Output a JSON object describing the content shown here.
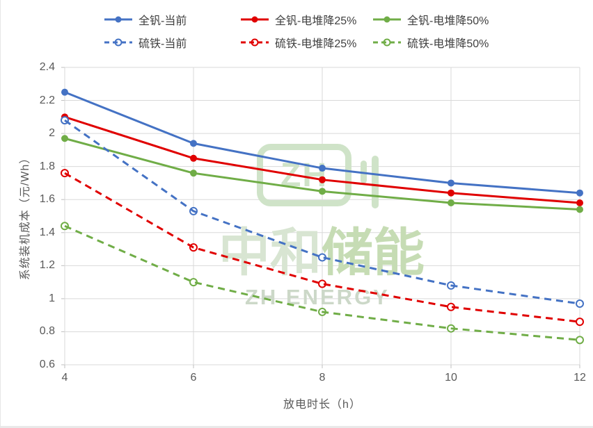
{
  "watermark": {
    "logo_text": "ZH",
    "title_cn_part1": "中和",
    "title_cn_part2": "储能",
    "title_en": "ZH ENERGY",
    "color": "#cfe3c8"
  },
  "colors": {
    "axis_text": "#595959",
    "legend_text": "#3f3f3f",
    "gridline": "#d9d9d9",
    "tick_mark": "#bfbfbf",
    "blue": "#4472c4",
    "red": "#e00000",
    "green": "#70ad47"
  },
  "chart_data": {
    "type": "line",
    "title": "",
    "xlabel": "放电时长（h）",
    "ylabel": "系统装机成本（元/Wh）",
    "x": [
      4,
      6,
      8,
      10,
      12
    ],
    "x_tick_labels": [
      "4",
      "6",
      "8",
      "10",
      "12"
    ],
    "y_tick_labels": [
      "2.4",
      "2.2",
      "2",
      "1.8",
      "1.6",
      "1.4",
      "1.2",
      "1",
      "0.8",
      "0.6"
    ],
    "ylim": [
      0.6,
      2.4
    ],
    "y_step": 0.2,
    "grid": true,
    "legend_position": "top",
    "series": [
      {
        "name": "全钒-当前",
        "color": "#4472c4",
        "dash": "solid",
        "marker": "filled",
        "values": [
          2.25,
          1.94,
          1.79,
          1.7,
          1.64
        ]
      },
      {
        "name": "全钒-电堆降25%",
        "color": "#e00000",
        "dash": "solid",
        "marker": "filled",
        "values": [
          2.1,
          1.85,
          1.72,
          1.64,
          1.58
        ]
      },
      {
        "name": "全钒-电堆降50%",
        "color": "#70ad47",
        "dash": "solid",
        "marker": "filled",
        "values": [
          1.97,
          1.76,
          1.65,
          1.58,
          1.54
        ]
      },
      {
        "name": "硫铁-当前",
        "color": "#4472c4",
        "dash": "dashed",
        "marker": "open",
        "values": [
          2.08,
          1.53,
          1.25,
          1.08,
          0.97
        ]
      },
      {
        "name": "硫铁-电堆降25%",
        "color": "#e00000",
        "dash": "dashed",
        "marker": "open",
        "values": [
          1.76,
          1.31,
          1.09,
          0.95,
          0.86
        ]
      },
      {
        "name": "硫铁-电堆降50%",
        "color": "#70ad47",
        "dash": "dashed",
        "marker": "open",
        "values": [
          1.44,
          1.1,
          0.92,
          0.82,
          0.75
        ]
      }
    ]
  }
}
